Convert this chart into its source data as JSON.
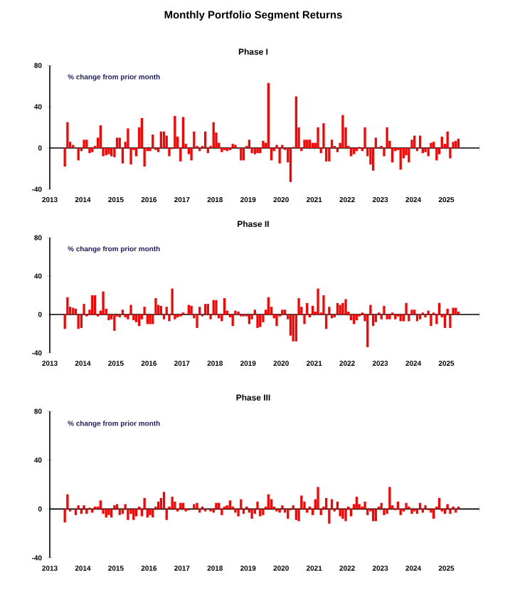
{
  "chart_data": [
    {
      "type": "bar",
      "title": "Monthly Portfolio Segment Returns",
      "subtitle": "Phase I",
      "annotations": [
        "% change from prior month"
      ],
      "color": "#ff0000",
      "x": [
        "2013-06",
        "2013-07",
        "2013-08",
        "2013-09",
        "2013-10",
        "2013-11",
        "2013-12",
        "2014-01",
        "2014-02",
        "2014-03",
        "2014-04",
        "2014-05",
        "2014-06",
        "2014-07",
        "2014-08",
        "2014-09",
        "2014-10",
        "2014-11",
        "2014-12",
        "2015-01",
        "2015-02",
        "2015-03",
        "2015-04",
        "2015-05",
        "2015-06",
        "2015-07",
        "2015-08",
        "2015-09",
        "2015-10",
        "2015-11",
        "2015-12",
        "2016-01",
        "2016-02",
        "2016-03",
        "2016-04",
        "2016-05",
        "2016-06",
        "2016-07",
        "2016-08",
        "2016-09",
        "2016-10",
        "2016-11",
        "2016-12",
        "2017-01",
        "2017-02",
        "2017-03",
        "2017-04",
        "2017-05",
        "2017-06",
        "2017-07",
        "2017-08",
        "2017-09",
        "2017-10",
        "2017-11",
        "2017-12",
        "2018-01",
        "2018-02",
        "2018-03",
        "2018-04",
        "2018-05",
        "2018-06",
        "2018-07",
        "2018-08",
        "2018-09",
        "2018-10",
        "2018-11",
        "2018-12",
        "2019-01",
        "2019-02",
        "2019-03",
        "2019-04",
        "2019-05",
        "2019-06",
        "2019-07",
        "2019-08",
        "2019-09",
        "2019-10",
        "2019-11",
        "2019-12",
        "2020-01",
        "2020-02",
        "2020-03",
        "2020-04",
        "2020-05",
        "2020-06",
        "2020-07",
        "2020-08",
        "2020-09",
        "2020-10",
        "2020-11",
        "2020-12",
        "2021-01",
        "2021-02",
        "2021-03",
        "2021-04",
        "2021-05",
        "2021-06",
        "2021-07",
        "2021-08",
        "2021-09",
        "2021-10",
        "2021-11",
        "2021-12",
        "2022-01",
        "2022-02",
        "2022-03",
        "2022-04",
        "2022-05",
        "2022-06",
        "2022-07",
        "2022-08",
        "2022-09",
        "2022-10",
        "2022-11",
        "2022-12",
        "2023-01",
        "2023-02",
        "2023-03",
        "2023-04",
        "2023-05",
        "2023-06",
        "2023-07",
        "2023-08",
        "2023-09",
        "2023-10",
        "2023-11",
        "2023-12",
        "2024-01",
        "2024-02",
        "2024-03",
        "2024-04",
        "2024-05",
        "2024-06",
        "2024-07",
        "2024-08",
        "2024-09",
        "2024-10",
        "2024-11",
        "2024-12",
        "2025-01",
        "2025-02",
        "2025-03",
        "2025-04",
        "2025-05"
      ],
      "values": [
        -18,
        25,
        6,
        3,
        0,
        -12,
        -3,
        8,
        8,
        -5,
        -4,
        2,
        10,
        22,
        -8,
        -7,
        -6,
        -8,
        -9,
        10,
        10,
        -15,
        6,
        19,
        -16,
        -2,
        -8,
        20,
        29,
        -18,
        -3,
        -3,
        13,
        -2,
        -4,
        16,
        16,
        12,
        -8,
        -1,
        31,
        11,
        -13,
        30,
        4,
        -6,
        -12,
        16,
        2,
        -3,
        2,
        16,
        -5,
        2,
        25,
        15,
        5,
        -4,
        -2,
        -3,
        -2,
        4,
        3,
        0,
        -12,
        -12,
        2,
        8,
        -5,
        -6,
        -5,
        -5,
        7,
        5,
        63,
        -12,
        -3,
        3,
        -15,
        3,
        -2,
        -14,
        -33,
        1,
        50,
        20,
        -3,
        8,
        8,
        8,
        5,
        5,
        20,
        -5,
        24,
        -13,
        -13,
        8,
        2,
        -4,
        5,
        32,
        20,
        2,
        -8,
        -6,
        -3,
        1,
        -3,
        20,
        -8,
        -16,
        -22,
        10,
        1,
        2,
        -8,
        20,
        7,
        -14,
        -3,
        -2,
        -21,
        -10,
        -7,
        -14,
        8,
        12,
        -3,
        12,
        -5,
        -4,
        -8,
        5,
        6,
        -12,
        -6,
        11,
        4,
        16,
        -10,
        6,
        7,
        9
      ],
      "xlim": [
        "2013",
        "2026"
      ],
      "xticks": [
        "2013",
        "2014",
        "2015",
        "2016",
        "2017",
        "2018",
        "2019",
        "2020",
        "2021",
        "2022",
        "2023",
        "2024",
        "2025",
        {
          "value": "2026",
          "label": null
        }
      ],
      "ylim": [
        -40,
        80
      ],
      "yticks": [
        -40,
        0,
        40,
        80
      ]
    },
    {
      "type": "bar",
      "title": "Phase II",
      "annotations": [
        "% change from prior month"
      ],
      "color": "#ff0000",
      "x": [
        "2013-06",
        "2013-07",
        "2013-08",
        "2013-09",
        "2013-10",
        "2013-11",
        "2013-12",
        "2014-01",
        "2014-02",
        "2014-03",
        "2014-04",
        "2014-05",
        "2014-06",
        "2014-07",
        "2014-08",
        "2014-09",
        "2014-10",
        "2014-11",
        "2014-12",
        "2015-01",
        "2015-02",
        "2015-03",
        "2015-04",
        "2015-05",
        "2015-06",
        "2015-07",
        "2015-08",
        "2015-09",
        "2015-10",
        "2015-11",
        "2015-12",
        "2016-01",
        "2016-02",
        "2016-03",
        "2016-04",
        "2016-05",
        "2016-06",
        "2016-07",
        "2016-08",
        "2016-09",
        "2016-10",
        "2016-11",
        "2016-12",
        "2017-01",
        "2017-02",
        "2017-03",
        "2017-04",
        "2017-05",
        "2017-06",
        "2017-07",
        "2017-08",
        "2017-09",
        "2017-10",
        "2017-11",
        "2017-12",
        "2018-01",
        "2018-02",
        "2018-03",
        "2018-04",
        "2018-05",
        "2018-06",
        "2018-07",
        "2018-08",
        "2018-09",
        "2018-10",
        "2018-11",
        "2018-12",
        "2019-01",
        "2019-02",
        "2019-03",
        "2019-04",
        "2019-05",
        "2019-06",
        "2019-07",
        "2019-08",
        "2019-09",
        "2019-10",
        "2019-11",
        "2019-12",
        "2020-01",
        "2020-02",
        "2020-03",
        "2020-04",
        "2020-05",
        "2020-06",
        "2020-07",
        "2020-08",
        "2020-09",
        "2020-10",
        "2020-11",
        "2020-12",
        "2021-01",
        "2021-02",
        "2021-03",
        "2021-04",
        "2021-05",
        "2021-06",
        "2021-07",
        "2021-08",
        "2021-09",
        "2021-10",
        "2021-11",
        "2021-12",
        "2022-01",
        "2022-02",
        "2022-03",
        "2022-04",
        "2022-05",
        "2022-06",
        "2022-07",
        "2022-08",
        "2022-09",
        "2022-10",
        "2022-11",
        "2022-12",
        "2023-01",
        "2023-02",
        "2023-03",
        "2023-04",
        "2023-05",
        "2023-06",
        "2023-07",
        "2023-08",
        "2023-09",
        "2023-10",
        "2023-11",
        "2023-12",
        "2024-01",
        "2024-02",
        "2024-03",
        "2024-04",
        "2024-05",
        "2024-06",
        "2024-07",
        "2024-08",
        "2024-09",
        "2024-10",
        "2024-11",
        "2024-12",
        "2025-01",
        "2025-02",
        "2025-03",
        "2025-04",
        "2025-05"
      ],
      "values": [
        -15,
        18,
        8,
        7,
        6,
        -15,
        -14,
        11,
        -2,
        5,
        20,
        20,
        -2,
        4,
        24,
        6,
        -6,
        -5,
        -17,
        -2,
        -3,
        5,
        -3,
        -5,
        10,
        -6,
        -8,
        -12,
        -5,
        8,
        -10,
        -10,
        -10,
        17,
        10,
        9,
        -5,
        8,
        -7,
        27,
        -5,
        -3,
        -2,
        2,
        0,
        10,
        9,
        -4,
        -14,
        8,
        -2,
        11,
        11,
        -5,
        15,
        15,
        -4,
        -7,
        17,
        4,
        -3,
        -12,
        4,
        3,
        -2,
        -2,
        -2,
        -10,
        -5,
        5,
        -14,
        -13,
        -8,
        5,
        18,
        8,
        -4,
        -12,
        -2,
        5,
        5,
        -5,
        -22,
        -28,
        -28,
        17,
        8,
        -10,
        12,
        -3,
        9,
        3,
        27,
        2,
        20,
        -15,
        8,
        -4,
        -3,
        12,
        10,
        12,
        16,
        3,
        -6,
        -10,
        -6,
        -2,
        2,
        -7,
        -34,
        10,
        -12,
        -8,
        2,
        -5,
        9,
        -5,
        -5,
        2,
        -5,
        -2,
        -7,
        -7,
        12,
        -7,
        5,
        5,
        -7,
        -5,
        2,
        -3,
        4,
        -12,
        2,
        -10,
        12,
        -3,
        -14,
        6,
        -14,
        7,
        7,
        3
      ],
      "xlim": [
        "2013",
        "2026"
      ],
      "xticks": [
        "2013",
        "2014",
        "2015",
        "2016",
        "2017",
        "2018",
        "2019",
        "2020",
        "2021",
        "2022",
        "2023",
        "2024",
        "2025",
        {
          "value": "2026",
          "label": null
        }
      ],
      "ylim": [
        -40,
        80
      ],
      "yticks": [
        -40,
        0,
        40,
        80
      ]
    },
    {
      "type": "bar",
      "title": "Phase III",
      "annotations": [
        "% change from prior month"
      ],
      "color": "#ff0000",
      "x": [
        "2013-06",
        "2013-07",
        "2013-08",
        "2013-09",
        "2013-10",
        "2013-11",
        "2013-12",
        "2014-01",
        "2014-02",
        "2014-03",
        "2014-04",
        "2014-05",
        "2014-06",
        "2014-07",
        "2014-08",
        "2014-09",
        "2014-10",
        "2014-11",
        "2014-12",
        "2015-01",
        "2015-02",
        "2015-03",
        "2015-04",
        "2015-05",
        "2015-06",
        "2015-07",
        "2015-08",
        "2015-09",
        "2015-10",
        "2015-11",
        "2015-12",
        "2016-01",
        "2016-02",
        "2016-03",
        "2016-04",
        "2016-05",
        "2016-06",
        "2016-07",
        "2016-08",
        "2016-09",
        "2016-10",
        "2016-11",
        "2016-12",
        "2017-01",
        "2017-02",
        "2017-03",
        "2017-04",
        "2017-05",
        "2017-06",
        "2017-07",
        "2017-08",
        "2017-09",
        "2017-10",
        "2017-11",
        "2017-12",
        "2018-01",
        "2018-02",
        "2018-03",
        "2018-04",
        "2018-05",
        "2018-06",
        "2018-07",
        "2018-08",
        "2018-09",
        "2018-10",
        "2018-11",
        "2018-12",
        "2019-01",
        "2019-02",
        "2019-03",
        "2019-04",
        "2019-05",
        "2019-06",
        "2019-07",
        "2019-08",
        "2019-09",
        "2019-10",
        "2019-11",
        "2019-12",
        "2020-01",
        "2020-02",
        "2020-03",
        "2020-04",
        "2020-05",
        "2020-06",
        "2020-07",
        "2020-08",
        "2020-09",
        "2020-10",
        "2020-11",
        "2020-12",
        "2021-01",
        "2021-02",
        "2021-03",
        "2021-04",
        "2021-05",
        "2021-06",
        "2021-07",
        "2021-08",
        "2021-09",
        "2021-10",
        "2021-11",
        "2021-12",
        "2022-01",
        "2022-02",
        "2022-03",
        "2022-04",
        "2022-05",
        "2022-06",
        "2022-07",
        "2022-08",
        "2022-09",
        "2022-10",
        "2022-11",
        "2022-12",
        "2023-01",
        "2023-02",
        "2023-03",
        "2023-04",
        "2023-05",
        "2023-06",
        "2023-07",
        "2023-08",
        "2023-09",
        "2023-10",
        "2023-11",
        "2023-12",
        "2024-01",
        "2024-02",
        "2024-03",
        "2024-04",
        "2024-05",
        "2024-06",
        "2024-07",
        "2024-08",
        "2024-09",
        "2024-10",
        "2024-11",
        "2024-12",
        "2025-01",
        "2025-02",
        "2025-03",
        "2025-04",
        "2025-05"
      ],
      "values": [
        -11,
        12,
        -2,
        0,
        -5,
        3,
        -4,
        3,
        -4,
        1,
        -3,
        2,
        2,
        7,
        -4,
        -7,
        -5,
        -7,
        3,
        4,
        -5,
        -4,
        4,
        -9,
        -4,
        -9,
        -6,
        2,
        -6,
        9,
        -7,
        -5,
        -7,
        2,
        6,
        9,
        14,
        -9,
        2,
        10,
        6,
        -2,
        5,
        5,
        -2,
        -1,
        0,
        4,
        5,
        -3,
        2,
        -2,
        0,
        -2,
        -3,
        5,
        5,
        -5,
        2,
        3,
        7,
        2,
        -3,
        -6,
        8,
        -4,
        2,
        -3,
        -8,
        -4,
        6,
        -6,
        -5,
        2,
        12,
        8,
        2,
        -2,
        -3,
        3,
        -3,
        -8,
        -1,
        3,
        -9,
        -10,
        11,
        6,
        -3,
        2,
        -5,
        8,
        18,
        -5,
        2,
        9,
        -12,
        8,
        -2,
        6,
        -6,
        -8,
        -10,
        2,
        -6,
        4,
        10,
        4,
        2,
        6,
        -5,
        -2,
        -10,
        -10,
        2,
        5,
        -5,
        -4,
        18,
        3,
        -1,
        6,
        -5,
        -2,
        5,
        2,
        -4,
        -2,
        -4,
        5,
        -3,
        3,
        -1,
        -3,
        -8,
        2,
        9,
        -2,
        -4,
        4,
        -4,
        2,
        -3,
        2
      ],
      "xlim": [
        "2013",
        "2026"
      ],
      "xticks": [
        "2013",
        "2014",
        "2015",
        "2016",
        "2017",
        "2018",
        "2019",
        "2020",
        "2021",
        "2022",
        "2023",
        "2024",
        "2025",
        {
          "value": "2026",
          "label": null
        }
      ],
      "ylim": [
        -40,
        80
      ],
      "yticks": [
        -40,
        0,
        40,
        80
      ]
    }
  ]
}
